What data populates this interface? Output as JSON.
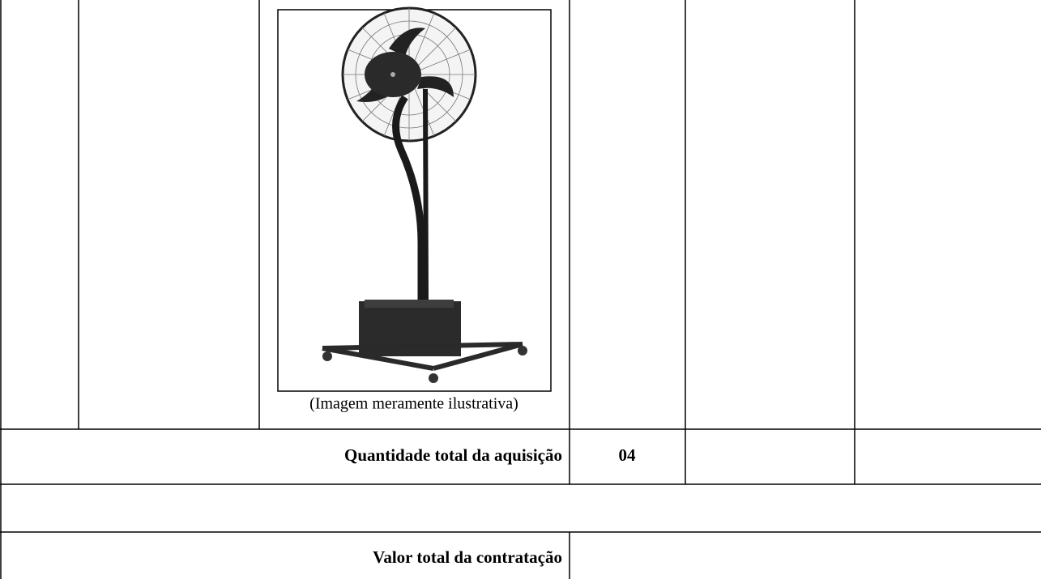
{
  "table": {
    "image_caption": "(Imagem meramente ilustrativa)",
    "quantity_label": "Quantidade total da aquisição",
    "quantity_value": "04",
    "total_value_label": "Valor total da contratação"
  }
}
